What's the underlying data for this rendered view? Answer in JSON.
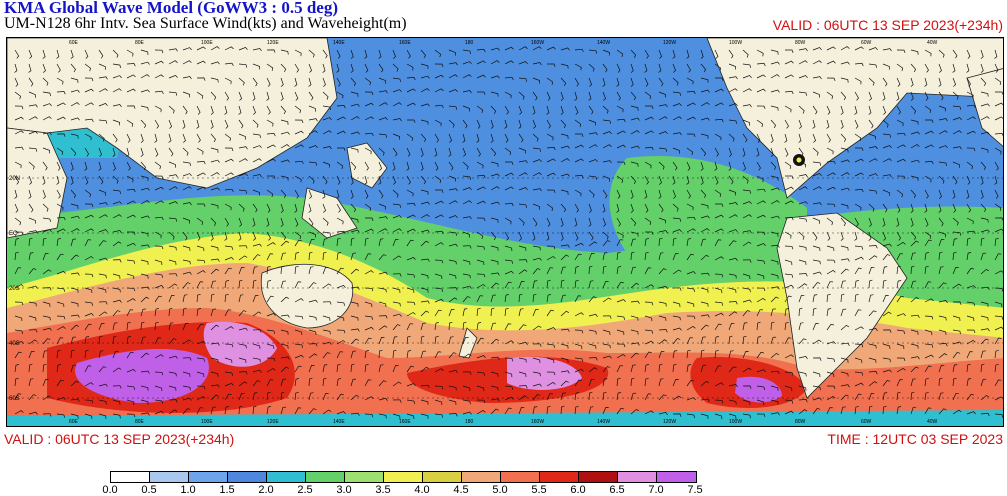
{
  "header": {
    "title": "KMA  Global Wave Model (GoWW3 : 0.5 deg)",
    "subtitle": "UM-N128  6hr Intv. Sea Surface Wind(kts) and Waveheight(m)",
    "valid_top": "VALID : 06UTC 13 SEP 2023(+234h)"
  },
  "footer": {
    "valid": "VALID : 06UTC 13 SEP 2023(+234h)",
    "time": "TIME : 12UTC 03 SEP 2023"
  },
  "colorbar": {
    "labels": [
      "0.0",
      "0.5",
      "1.0",
      "1.5",
      "2.0",
      "2.5",
      "3.0",
      "3.5",
      "4.0",
      "4.5",
      "5.0",
      "5.5",
      "6.0",
      "6.5",
      "7.0",
      "7.5"
    ],
    "colors": [
      "#ffffff",
      "#a8c8f0",
      "#6fa3ea",
      "#4f86de",
      "#2fbfd0",
      "#63d06a",
      "#9be070",
      "#f0f050",
      "#d8d040",
      "#f0a878",
      "#f07050",
      "#e02818",
      "#b01010",
      "#e090e0",
      "#c060e8",
      "#a030e0"
    ]
  },
  "map": {
    "ocean_color": "#4f8fe0",
    "land_color": "#f5f0dc",
    "lat_labels": [
      "20N",
      "EQ",
      "20S",
      "40S",
      "60S"
    ],
    "lon_labels": [
      "60E",
      "80E",
      "100E",
      "120E",
      "140E",
      "160E",
      "180",
      "160W",
      "140W",
      "120W",
      "100W",
      "80W",
      "60W",
      "40W"
    ]
  }
}
